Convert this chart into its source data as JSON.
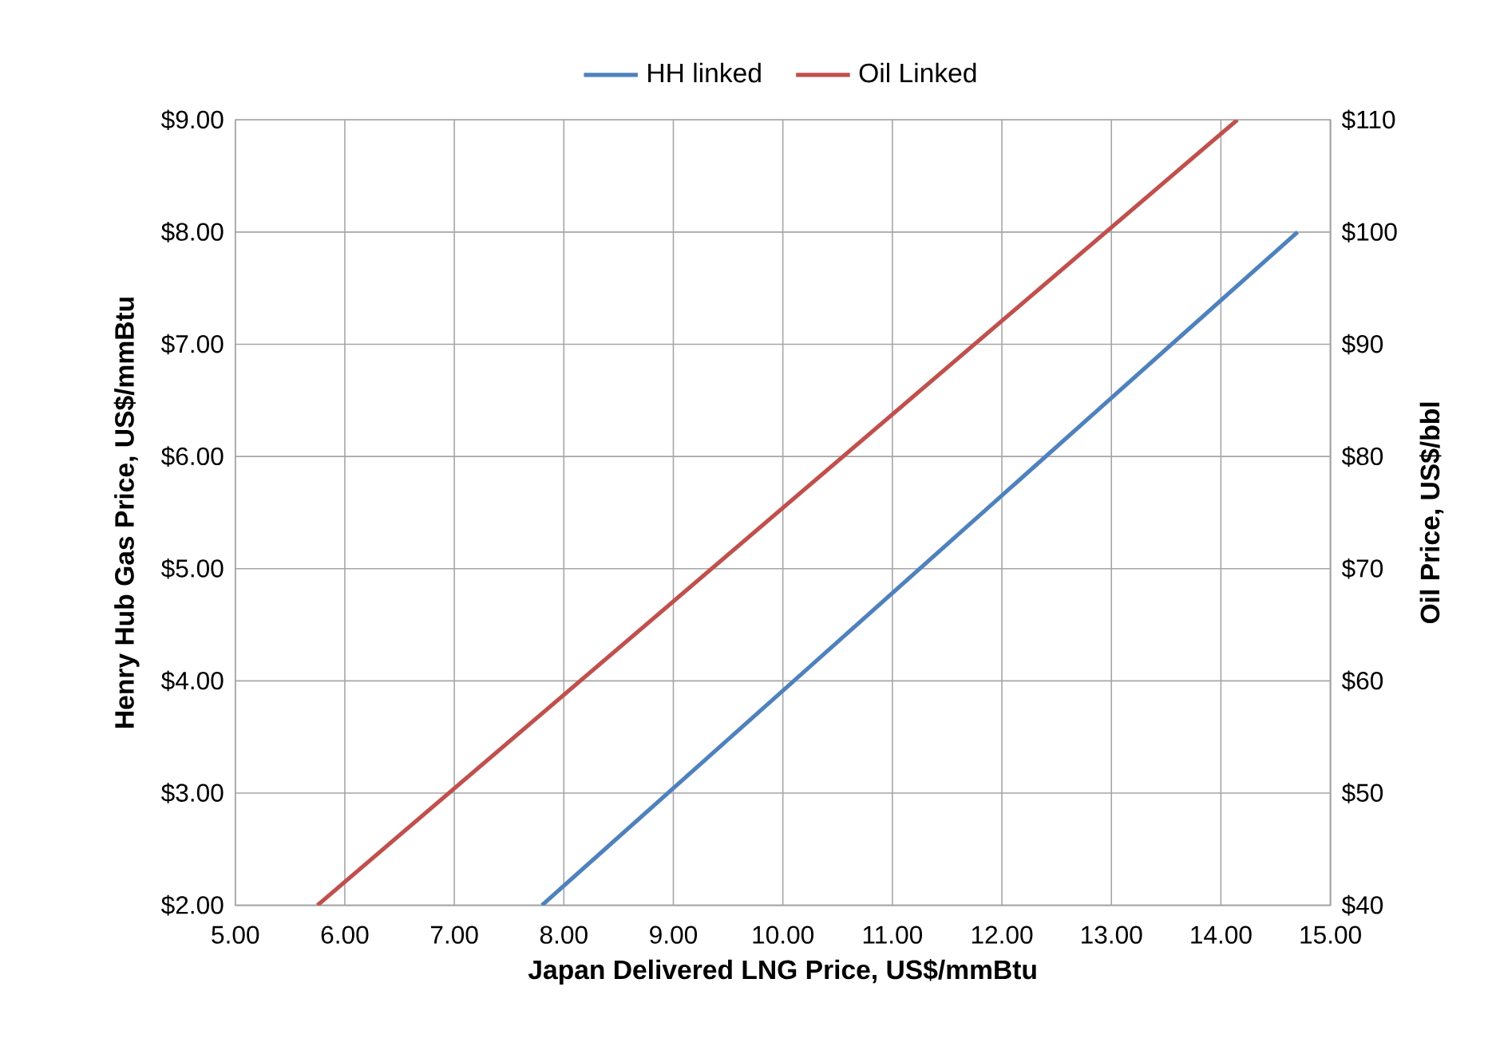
{
  "chart_data": {
    "type": "line",
    "xlabel": "Japan Delivered LNG Price, US$/mmBtu",
    "ylabel": "Henry Hub Gas Price, US$/mmBtu",
    "y2label": "Oil Price, US$/bbl",
    "series": [
      {
        "name": "HH linked",
        "color": "#4f81bd",
        "x": [
          7.8,
          14.7
        ],
        "values": [
          2,
          8
        ]
      },
      {
        "name": "Oil Linked",
        "color": "#c0504d",
        "axis": "y2",
        "x": [
          5.75,
          14.15
        ],
        "values": [
          40,
          110
        ]
      }
    ],
    "xlim": [
      5,
      15
    ],
    "ylim": [
      2,
      9
    ],
    "y2lim": [
      40,
      110
    ],
    "xticks": [
      {
        "value": 5,
        "label": "5.00"
      },
      {
        "value": 6,
        "label": "6.00"
      },
      {
        "value": 7,
        "label": "7.00"
      },
      {
        "value": 8,
        "label": "8.00"
      },
      {
        "value": 9,
        "label": "9.00"
      },
      {
        "value": 10,
        "label": "10.00"
      },
      {
        "value": 11,
        "label": "11.00"
      },
      {
        "value": 12,
        "label": "12.00"
      },
      {
        "value": 13,
        "label": "13.00"
      },
      {
        "value": 14,
        "label": "14.00"
      },
      {
        "value": 15,
        "label": "15.00"
      }
    ],
    "yticks": [
      {
        "value": 2,
        "label": "$2.00"
      },
      {
        "value": 3,
        "label": "$3.00"
      },
      {
        "value": 4,
        "label": "$4.00"
      },
      {
        "value": 5,
        "label": "$5.00"
      },
      {
        "value": 6,
        "label": "$6.00"
      },
      {
        "value": 7,
        "label": "$7.00"
      },
      {
        "value": 8,
        "label": "$8.00"
      },
      {
        "value": 9,
        "label": "$9.00"
      }
    ],
    "y2ticks": [
      {
        "value": 40,
        "label": "$40"
      },
      {
        "value": 50,
        "label": "$50"
      },
      {
        "value": 60,
        "label": "$60"
      },
      {
        "value": 70,
        "label": "$70"
      },
      {
        "value": 80,
        "label": "$80"
      },
      {
        "value": 90,
        "label": "$90"
      },
      {
        "value": 100,
        "label": "$100"
      },
      {
        "value": 110,
        "label": "$110"
      }
    ],
    "grid": true,
    "legend": "top",
    "marker": "none",
    "line_style": "solid"
  }
}
